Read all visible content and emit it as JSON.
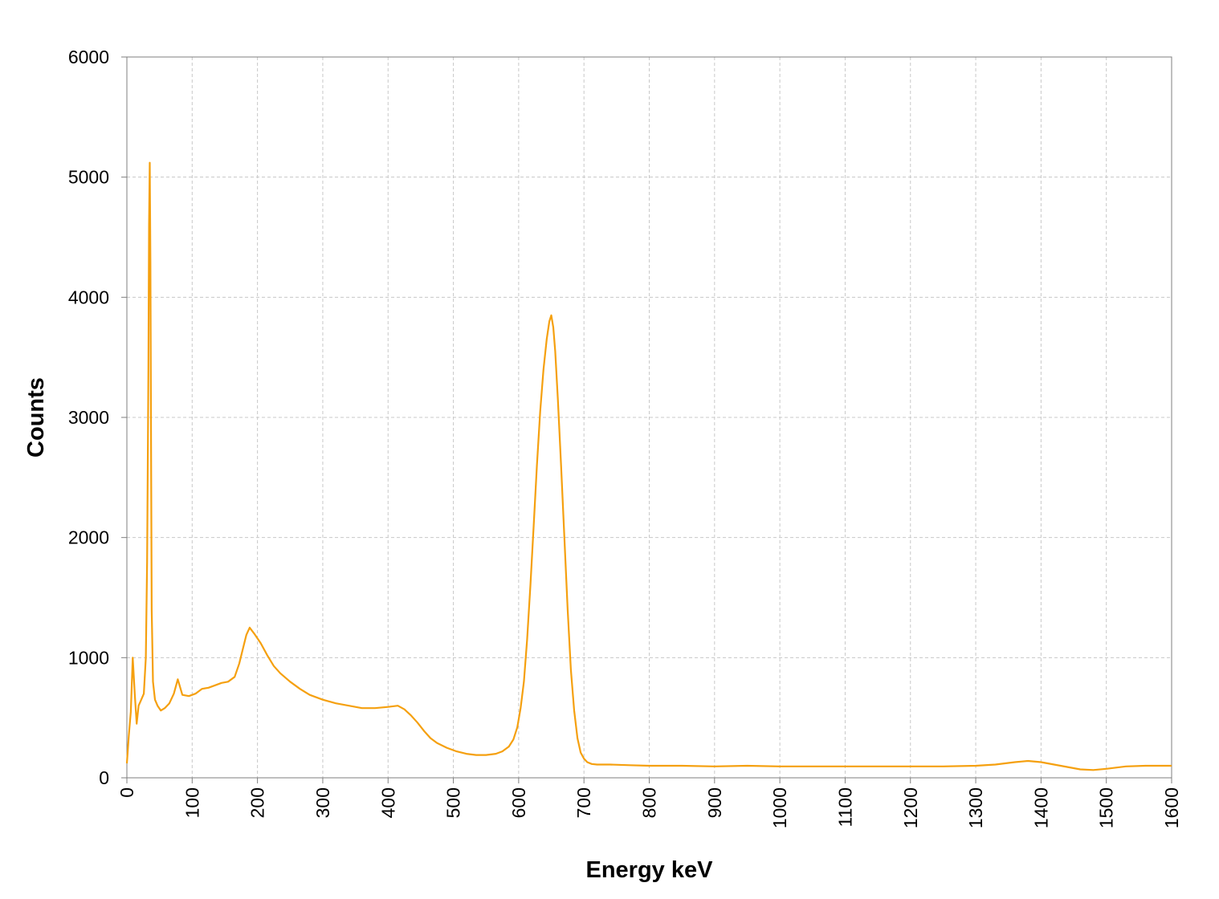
{
  "chart_data": {
    "type": "line",
    "title": "",
    "xlabel": "Energy keV",
    "ylabel": "Counts",
    "xlim": [
      0,
      1600
    ],
    "ylim": [
      0,
      6000
    ],
    "xticks": [
      0,
      100,
      200,
      300,
      400,
      500,
      600,
      700,
      800,
      900,
      1000,
      1100,
      1200,
      1300,
      1400,
      1500,
      1600
    ],
    "yticks": [
      0,
      1000,
      2000,
      3000,
      4000,
      5000,
      6000
    ],
    "grid": true,
    "legend": "none",
    "series": [
      {
        "color": "#f5a00f",
        "x": [
          0,
          3,
          6,
          9,
          12,
          15,
          18,
          22,
          26,
          29,
          31,
          33,
          34,
          35,
          36,
          37,
          38,
          40,
          43,
          47,
          52,
          58,
          65,
          72,
          78,
          85,
          95,
          105,
          115,
          125,
          135,
          145,
          155,
          165,
          172,
          178,
          183,
          188,
          195,
          205,
          215,
          225,
          235,
          250,
          265,
          280,
          300,
          320,
          340,
          360,
          380,
          400,
          415,
          425,
          435,
          445,
          455,
          465,
          475,
          490,
          505,
          520,
          535,
          550,
          565,
          575,
          585,
          592,
          598,
          603,
          608,
          613,
          618,
          623,
          628,
          633,
          638,
          643,
          647,
          650,
          653,
          656,
          660,
          665,
          670,
          675,
          680,
          685,
          690,
          695,
          700,
          705,
          712,
          720,
          740,
          770,
          800,
          850,
          900,
          950,
          1000,
          1050,
          1100,
          1150,
          1200,
          1250,
          1300,
          1330,
          1360,
          1380,
          1400,
          1420,
          1440,
          1460,
          1480,
          1500,
          1530,
          1560,
          1600
        ],
        "y": [
          120,
          350,
          550,
          1000,
          700,
          450,
          600,
          650,
          700,
          1000,
          1800,
          3400,
          4600,
          5120,
          4300,
          2800,
          1400,
          800,
          650,
          600,
          560,
          580,
          620,
          700,
          820,
          690,
          680,
          700,
          740,
          750,
          770,
          790,
          800,
          840,
          950,
          1080,
          1190,
          1250,
          1200,
          1120,
          1020,
          930,
          870,
          800,
          740,
          690,
          650,
          620,
          600,
          580,
          580,
          590,
          600,
          570,
          520,
          460,
          390,
          330,
          290,
          250,
          220,
          200,
          190,
          190,
          200,
          220,
          260,
          320,
          420,
          580,
          800,
          1150,
          1600,
          2100,
          2600,
          3050,
          3400,
          3650,
          3800,
          3850,
          3750,
          3550,
          3150,
          2600,
          2000,
          1400,
          900,
          560,
          330,
          210,
          160,
          130,
          115,
          110,
          110,
          105,
          100,
          100,
          95,
          100,
          95,
          95,
          95,
          95,
          95,
          95,
          100,
          110,
          130,
          140,
          130,
          110,
          90,
          70,
          65,
          75,
          95,
          100,
          100
        ]
      }
    ]
  }
}
